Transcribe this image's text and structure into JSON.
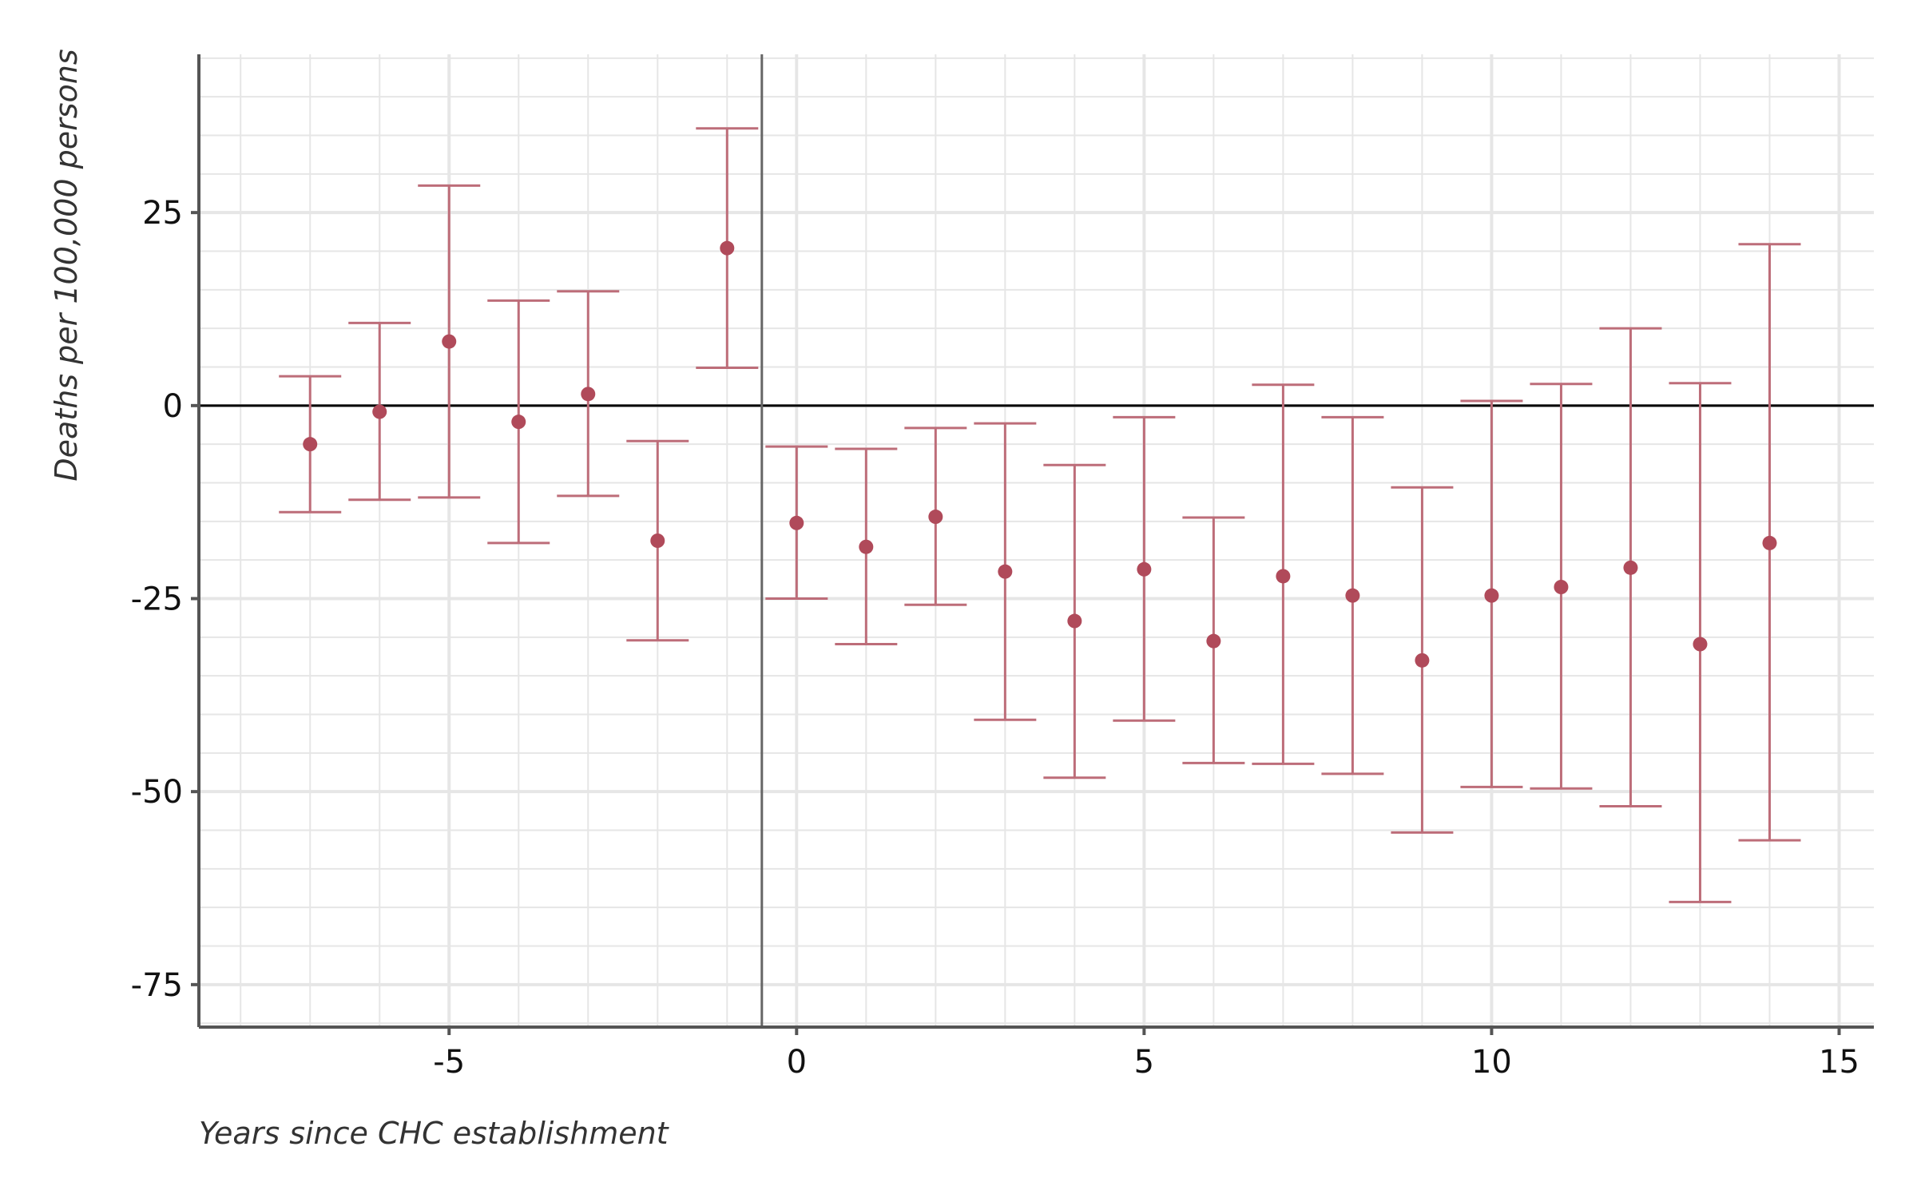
{
  "chart_data": {
    "type": "scatter",
    "title": "",
    "xlabel": "Years since CHC establishment",
    "ylabel": "Deaths per 100,000 persons",
    "xlim": [
      -8.6,
      15.5
    ],
    "ylim": [
      -80.5,
      45.5
    ],
    "x_ticks": [
      -5,
      0,
      5,
      10,
      15
    ],
    "y_ticks": [
      -75,
      -50,
      -25,
      0,
      25
    ],
    "x_tick_labels": [
      "-5",
      "0",
      "5",
      "10",
      "15"
    ],
    "y_tick_labels": [
      "-75",
      "-50",
      "-25",
      "0",
      "25"
    ],
    "grid": true,
    "legend": "none",
    "reference_lines": {
      "vertical_x": -0.5,
      "horizontal_y": 0
    },
    "series": [
      {
        "x": [
          -7,
          -6,
          -5,
          -4,
          -3,
          -2,
          -1,
          0,
          1,
          2,
          3,
          4,
          5,
          6,
          7,
          8,
          9,
          10,
          11,
          12,
          13,
          14
        ],
        "y": [
          -5.0,
          -0.8,
          8.3,
          -2.1,
          1.5,
          -17.5,
          20.4,
          -15.2,
          -18.3,
          -14.4,
          -21.5,
          -27.9,
          -21.2,
          -30.5,
          -22.1,
          -24.6,
          -33.0,
          -24.6,
          -23.5,
          -21.0,
          -30.9,
          -17.8
        ],
        "lower": [
          -13.8,
          -12.2,
          -11.9,
          -17.8,
          -11.7,
          -30.4,
          4.9,
          -25.0,
          -30.9,
          -25.8,
          -40.7,
          -48.2,
          -40.8,
          -46.3,
          -46.4,
          -47.7,
          -55.3,
          -49.4,
          -49.6,
          -51.9,
          -64.3,
          -56.3
        ],
        "upper": [
          3.8,
          10.7,
          28.5,
          13.6,
          14.8,
          -4.6,
          35.9,
          -5.3,
          -5.6,
          -2.9,
          -2.3,
          -7.7,
          -1.5,
          -14.5,
          2.7,
          -1.5,
          -10.6,
          0.6,
          2.8,
          10.0,
          2.9,
          20.9
        ]
      }
    ],
    "colors": {
      "point": "#b04a5a",
      "errorbar": "#bd6d79",
      "grid": "#e6e6e6",
      "axis": "#555555",
      "zero_line": "#000000",
      "vline": "#666666"
    }
  }
}
